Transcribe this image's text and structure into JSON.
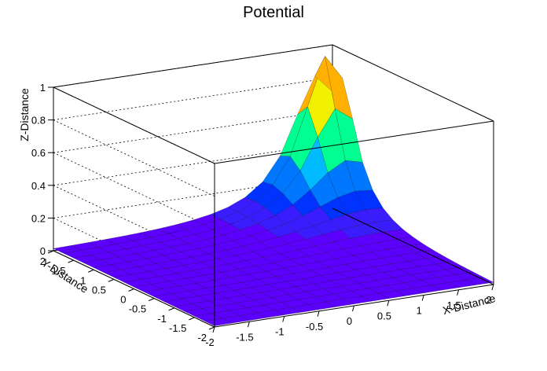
{
  "chart_data": {
    "type": "surface",
    "title": "Potential",
    "xlabel": "X-Distance",
    "ylabel": "Y-Distance",
    "zlabel": "Z-Distance",
    "xlim": [
      -2,
      2
    ],
    "ylim": [
      -2,
      2
    ],
    "zlim": [
      0,
      1
    ],
    "x_ticks": [
      -2,
      -1.5,
      -1,
      -0.5,
      0,
      0.5,
      1,
      1.5,
      2
    ],
    "y_ticks": [
      -2,
      -1.5,
      -1,
      -0.5,
      0,
      0.5,
      1,
      1.5,
      2
    ],
    "z_ticks": [
      0,
      0.2,
      0.4,
      0.6,
      0.8,
      1
    ],
    "x_tick_labels": [
      "-2",
      "-1.5",
      "-1",
      "-0.5",
      "0",
      "0.5",
      "1",
      "1.5",
      "2"
    ],
    "y_tick_labels": [
      "-2",
      "-1.5",
      "-1",
      "-0.5",
      "0",
      "0.5",
      "1",
      "1.5",
      "2"
    ],
    "z_tick_labels": [
      "0",
      "0.2",
      "0.4",
      "0.6",
      "0.8",
      "1"
    ],
    "grid": true,
    "colormap": "rainbow",
    "function": "1 / (1 + 5*((x-1.8)^2 + (y-1.8)^2))",
    "grid_points": 17
  }
}
